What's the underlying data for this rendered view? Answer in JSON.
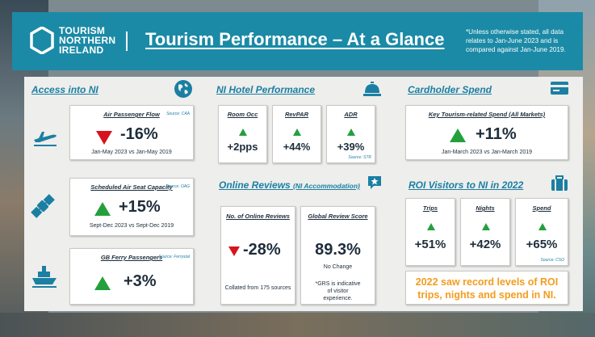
{
  "header": {
    "logo_lines": [
      "TOURISM",
      "NORTHERN",
      "IRELAND"
    ],
    "title": "Tourism Performance – At a Glance",
    "note": "*Unless otherwise stated, all data relates to Jan-June 2023 and is compared against Jan-June 2019."
  },
  "access": {
    "heading": "Access into NI",
    "air_passenger": {
      "label": "Air Passenger Flow",
      "source": "Source: CAA",
      "value": "-16%",
      "direction": "down",
      "period": "Jan-May 2023 vs Jan-May 2019"
    },
    "air_seat": {
      "label": "Scheduled Air Seat Capacity",
      "source": "Source: OAG",
      "value": "+15%",
      "direction": "up",
      "period": "Sept-Dec 2023 vs Sept-Dec 2019"
    },
    "ferry": {
      "label": "GB Ferry Passengers",
      "source": "Source: Ferrystat",
      "value": "+3%",
      "direction": "up"
    }
  },
  "hotel": {
    "heading": "NI Hotel Performance",
    "source": "Source: STR",
    "items": [
      {
        "label": "Room Occ",
        "value": "+2pps"
      },
      {
        "label": "RevPAR",
        "value": "+44%"
      },
      {
        "label": "ADR",
        "value": "+39%"
      }
    ]
  },
  "reviews": {
    "heading": "Online Reviews",
    "heading_note": "(NI Accommodation)",
    "count": {
      "label": "No. of Online Reviews",
      "value": "-28%",
      "direction": "down",
      "note": "Collated from 175 sources"
    },
    "score": {
      "label": "Global Review Score",
      "value": "89.3%",
      "change": "No Change",
      "note": "*GRS is indicative of visitor experience."
    }
  },
  "cardholder": {
    "heading": "Cardholder Spend",
    "label": "Key Tourism-related Spend (All Markets)",
    "value": "+11%",
    "direction": "up",
    "period": "Jan-March 2023 vs Jan-March 2019"
  },
  "roi": {
    "heading": "ROI Visitors to NI in 2022",
    "source": "Source: CSO",
    "items": [
      {
        "label": "Trips",
        "value": "+51%"
      },
      {
        "label": "Nights",
        "value": "+42%"
      },
      {
        "label": "Spend",
        "value": "+65%"
      }
    ],
    "record_text": "2022 saw record levels of ROI trips, nights and spend in NI."
  },
  "colors": {
    "accent": "#1b8aa6",
    "heading": "#1b7fa3",
    "up": "#23a03c",
    "down": "#d6141e",
    "highlight": "#f39c1f",
    "text": "#1e2d3b"
  },
  "icons": [
    "hexagon-logo-icon",
    "globe-icon",
    "airplane-icon",
    "satellite-icon",
    "ship-icon",
    "bell-icon",
    "credit-card-icon",
    "star-chat-icon",
    "suitcase-icon"
  ]
}
